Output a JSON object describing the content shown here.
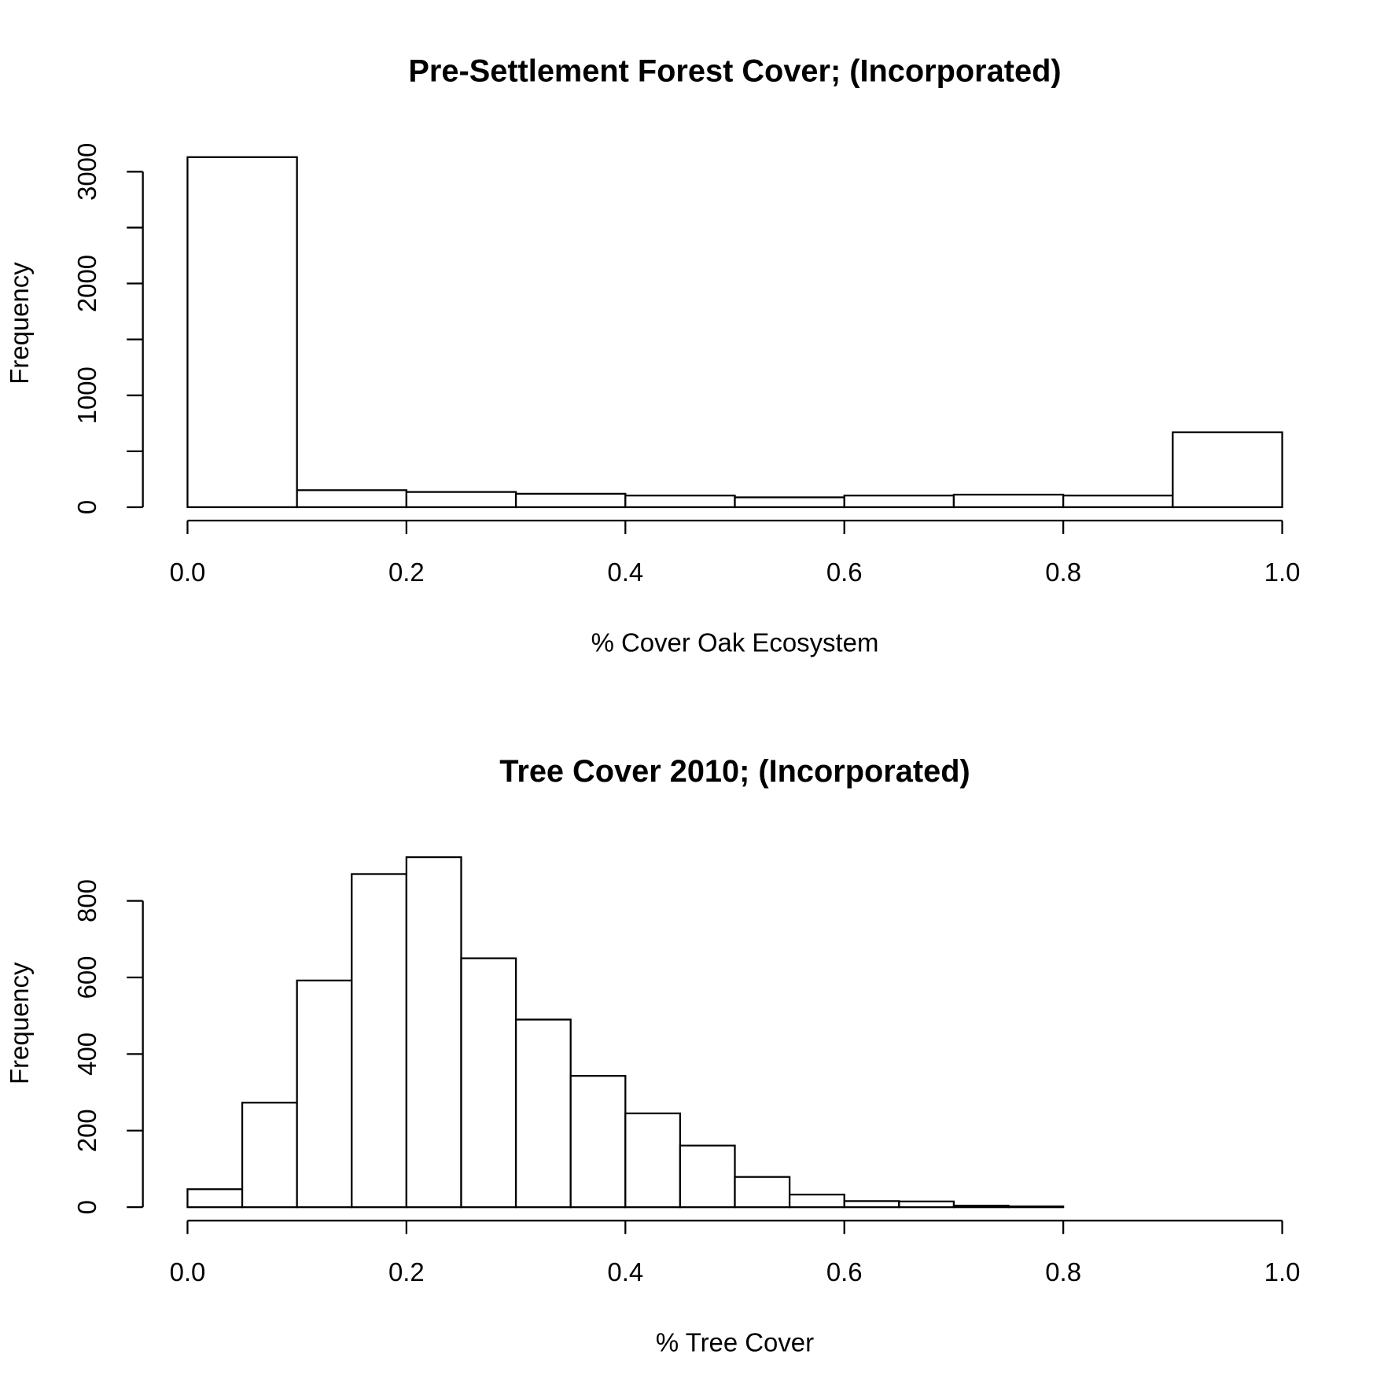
{
  "chart_data": [
    {
      "type": "histogram",
      "title": "Pre-Settlement Forest Cover; (Incorporated)",
      "xlabel": "% Cover Oak Ecosystem",
      "ylabel": "Frequency",
      "bins": [
        0,
        0.1,
        0.2,
        0.3,
        0.4,
        0.5,
        0.6,
        0.7,
        0.8,
        0.9,
        1
      ],
      "values": [
        3130,
        152,
        136,
        120,
        104,
        88,
        104,
        112,
        104,
        670
      ],
      "xlim": [
        0,
        1
      ],
      "xticks": [
        {
          "value": 0,
          "label": "0.0"
        },
        0.2,
        0.4,
        0.6,
        0.8,
        {
          "value": 1,
          "label": "1.0"
        }
      ],
      "ylim": [
        0,
        3130
      ],
      "yticks": [
        0,
        1000,
        2000,
        3000
      ],
      "yminor_ticks": [
        500,
        1500,
        2500
      ]
    },
    {
      "type": "histogram",
      "title": "Tree Cover 2010; (Incorporated)",
      "xlabel": "% Tree Cover",
      "ylabel": "Frequency",
      "bins": [
        0,
        0.05,
        0.1,
        0.15,
        0.2,
        0.25,
        0.3,
        0.35,
        0.4,
        0.45,
        0.5,
        0.55,
        0.6,
        0.65,
        0.7,
        0.75,
        0.8
      ],
      "values": [
        47,
        273,
        592,
        870,
        914,
        650,
        490,
        343,
        245,
        161,
        79,
        33,
        16,
        15,
        4,
        2
      ],
      "xlim": [
        0,
        1
      ],
      "xticks": [
        {
          "value": 0,
          "label": "0.0"
        },
        0.2,
        0.4,
        0.6,
        0.8,
        {
          "value": 1,
          "label": "1.0"
        }
      ],
      "ylim": [
        0,
        914
      ],
      "yticks": [
        0,
        200,
        400,
        600,
        800
      ]
    }
  ]
}
